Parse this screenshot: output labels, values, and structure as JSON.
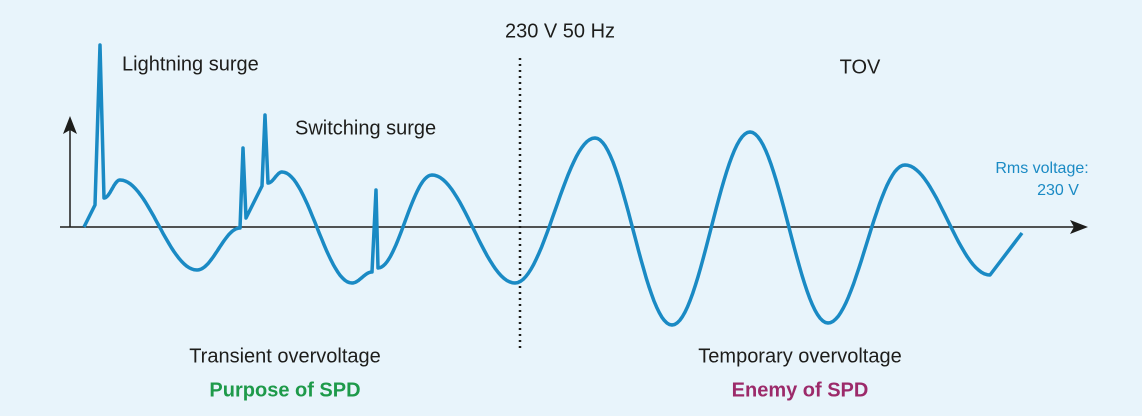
{
  "frequency_label": "230 V 50 Hz",
  "lightning_label": "Lightning surge",
  "switching_label": "Switching surge",
  "tov_label": "TOV",
  "rms_label": {
    "lines": [
      "Rms voltage:",
      "230 V"
    ]
  },
  "transient": {
    "title": "Transient overvoltage",
    "note": "Purpose of SPD"
  },
  "temporary": {
    "title": "Temporary overvoltage",
    "note": "Enemy of SPD"
  }
}
